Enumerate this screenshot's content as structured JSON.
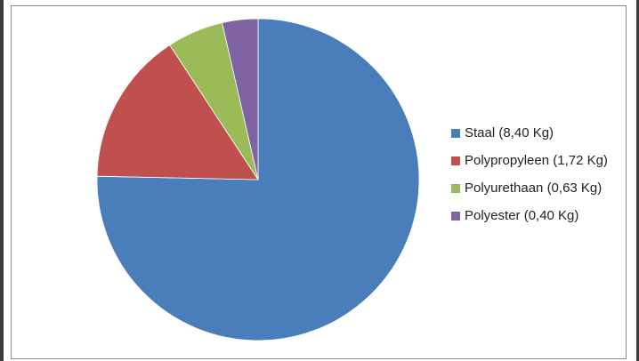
{
  "chart_data": {
    "type": "pie",
    "title": "",
    "categories": [
      "Staal (8,40 Kg)",
      "Polypropyleen (1,72 Kg)",
      "Polyurethaan (0,63 Kg)",
      "Polyester (0,40 Kg)"
    ],
    "values": [
      8.4,
      1.72,
      0.63,
      0.4
    ],
    "colors": [
      "#4a7ebb",
      "#c0504d",
      "#9bbb59",
      "#8064a2"
    ],
    "legend_placement": "right",
    "start_angle_deg": 0,
    "direction": "clockwise"
  }
}
